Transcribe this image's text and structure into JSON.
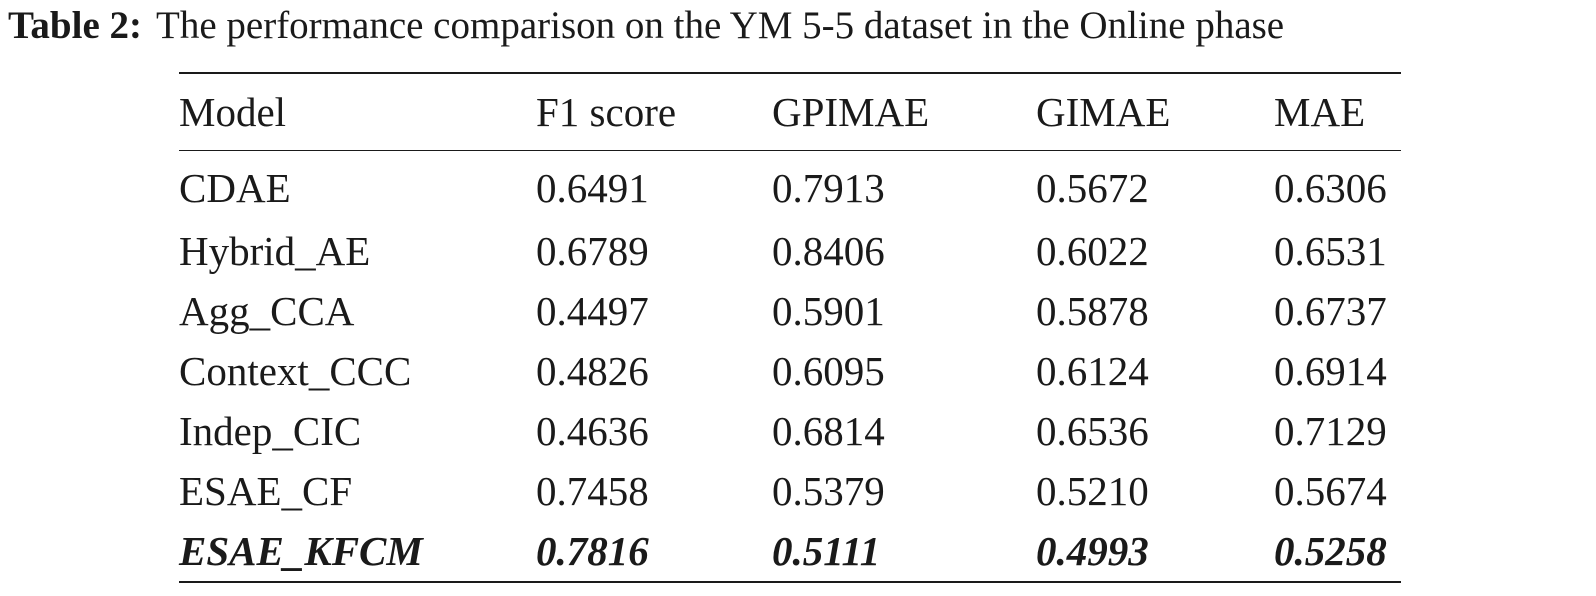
{
  "caption": {
    "label": "Table 2:",
    "text": "The performance comparison on the YM 5-5 dataset in the Online phase"
  },
  "table": {
    "headers": [
      "Model",
      "F1 score",
      "GPIMAE",
      "GIMAE",
      "MAE"
    ],
    "rows": [
      [
        "CDAE",
        "0.6491",
        "0.7913",
        "0.5672",
        "0.6306"
      ],
      [
        "Hybrid_AE",
        "0.6789",
        "0.8406",
        "0.6022",
        "0.6531"
      ],
      [
        "Agg_CCA",
        "0.4497",
        "0.5901",
        "0.5878",
        "0.6737"
      ],
      [
        "Context_CCC",
        "0.4826",
        "0.6095",
        "0.6124",
        "0.6914"
      ],
      [
        "Indep_CIC",
        "0.4636",
        "0.6814",
        "0.6536",
        "0.7129"
      ],
      [
        "ESAE_CF",
        "0.7458",
        "0.5379",
        "0.5210",
        "0.5674"
      ],
      [
        "ESAE_KFCM",
        "0.7816",
        "0.5111",
        "0.4993",
        "0.5258"
      ]
    ],
    "best_row": "ESAE_KFCM"
  }
}
